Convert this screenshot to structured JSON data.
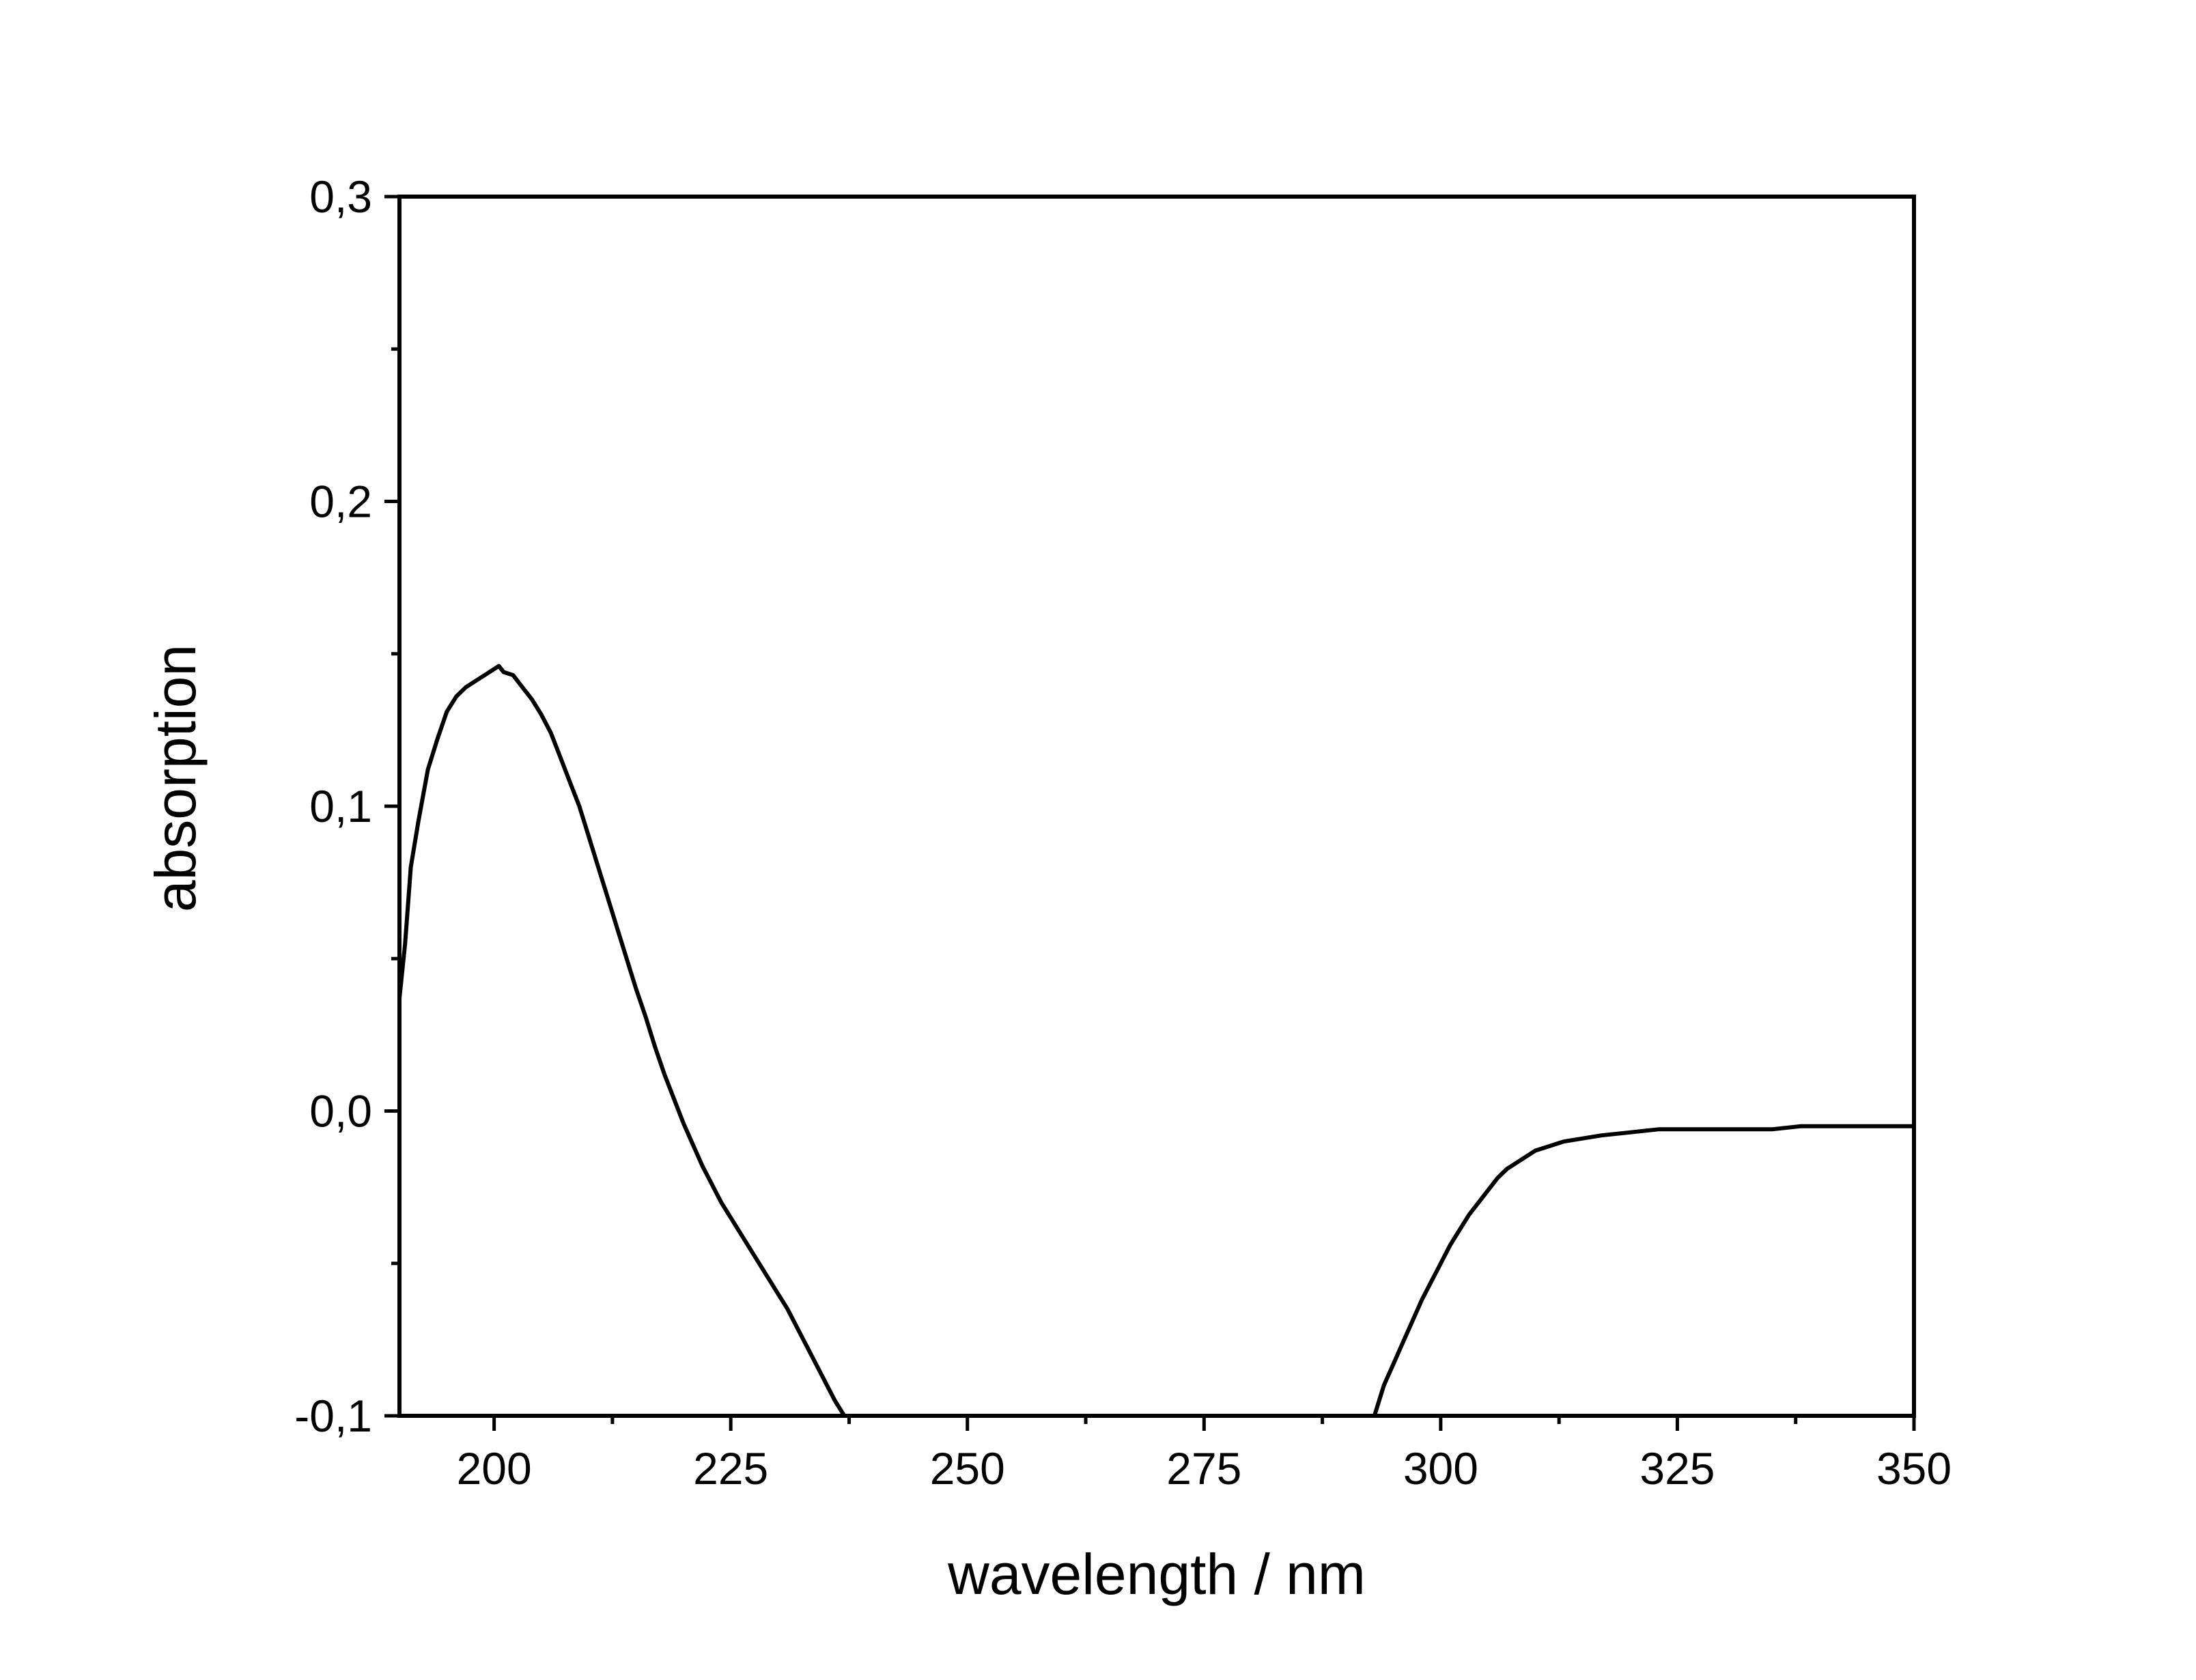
{
  "chart_data": {
    "type": "line",
    "title": "",
    "xlabel": "wavelength / nm",
    "ylabel": "absorption",
    "xlim": [
      190,
      350
    ],
    "ylim": [
      -0.1,
      0.3
    ],
    "x_ticks": [
      200,
      225,
      250,
      275,
      300,
      325,
      350
    ],
    "x_tick_labels": [
      "200",
      "225",
      "250",
      "275",
      "300",
      "325",
      "350"
    ],
    "x_minor_ticks": [
      212.5,
      237.5,
      262.5,
      287.5,
      312.5,
      337.5
    ],
    "y_ticks": [
      -0.1,
      0.0,
      0.1,
      0.2,
      0.3
    ],
    "y_tick_labels": [
      "-0,1",
      "0,0",
      "0,1",
      "0,2",
      "0,3"
    ],
    "y_minor_ticks": [
      -0.05,
      0.05,
      0.15,
      0.25
    ],
    "grid": false,
    "legend": "none",
    "line_color": "#000000",
    "series": [
      {
        "segments": [
          [
            [
              190.0,
              0.037
            ],
            [
              190.6,
              0.055
            ],
            [
              191.2,
              0.08
            ],
            [
              192.0,
              0.095
            ],
            [
              193.0,
              0.112
            ],
            [
              194.0,
              0.122
            ],
            [
              195.0,
              0.131
            ],
            [
              196.0,
              0.136
            ],
            [
              197.0,
              0.139
            ],
            [
              198.0,
              0.141
            ],
            [
              199.0,
              0.143
            ],
            [
              200.0,
              0.145
            ],
            [
              200.5,
              0.146
            ],
            [
              201.0,
              0.144
            ],
            [
              202.0,
              0.143
            ],
            [
              203.0,
              0.139
            ],
            [
              204.0,
              0.135
            ],
            [
              205.0,
              0.13
            ],
            [
              206.0,
              0.124
            ],
            [
              207.0,
              0.116
            ],
            [
              208.0,
              0.108
            ],
            [
              209.0,
              0.1
            ],
            [
              210.0,
              0.09
            ],
            [
              211.0,
              0.08
            ],
            [
              212.0,
              0.07
            ],
            [
              213.0,
              0.06
            ],
            [
              214.0,
              0.05
            ],
            [
              215.0,
              0.04
            ],
            [
              216.0,
              0.031
            ],
            [
              217.0,
              0.021
            ],
            [
              218.0,
              0.012
            ],
            [
              219.0,
              0.004
            ],
            [
              220.0,
              -0.004
            ],
            [
              221.0,
              -0.011
            ],
            [
              222.0,
              -0.018
            ],
            [
              223.0,
              -0.024
            ],
            [
              224.0,
              -0.03
            ],
            [
              225.0,
              -0.035
            ],
            [
              226.0,
              -0.04
            ],
            [
              227.0,
              -0.045
            ],
            [
              228.0,
              -0.05
            ],
            [
              229.0,
              -0.055
            ],
            [
              230.0,
              -0.06
            ],
            [
              231.0,
              -0.065
            ],
            [
              232.0,
              -0.071
            ],
            [
              233.0,
              -0.077
            ],
            [
              234.0,
              -0.083
            ],
            [
              235.0,
              -0.089
            ],
            [
              236.0,
              -0.095
            ],
            [
              237.0,
              -0.1
            ]
          ],
          [
            [
              293.0,
              -0.1
            ],
            [
              294.0,
              -0.09
            ],
            [
              295.0,
              -0.083
            ],
            [
              296.0,
              -0.076
            ],
            [
              297.0,
              -0.069
            ],
            [
              298.0,
              -0.062
            ],
            [
              299.0,
              -0.056
            ],
            [
              300.0,
              -0.05
            ],
            [
              301.0,
              -0.044
            ],
            [
              302.0,
              -0.039
            ],
            [
              303.0,
              -0.034
            ],
            [
              304.0,
              -0.03
            ],
            [
              305.0,
              -0.026
            ],
            [
              306.0,
              -0.022
            ],
            [
              307.0,
              -0.019
            ],
            [
              308.0,
              -0.017
            ],
            [
              309.0,
              -0.015
            ],
            [
              310.0,
              -0.013
            ],
            [
              311.0,
              -0.012
            ],
            [
              312.0,
              -0.011
            ],
            [
              313.0,
              -0.01
            ],
            [
              315.0,
              -0.009
            ],
            [
              317.0,
              -0.008
            ],
            [
              320.0,
              -0.007
            ],
            [
              323.0,
              -0.006
            ],
            [
              326.0,
              -0.006
            ],
            [
              329.0,
              -0.006
            ],
            [
              332.0,
              -0.006
            ],
            [
              335.0,
              -0.006
            ],
            [
              338.0,
              -0.005
            ],
            [
              341.0,
              -0.005
            ],
            [
              344.0,
              -0.005
            ],
            [
              347.0,
              -0.005
            ],
            [
              350.0,
              -0.005
            ]
          ]
        ]
      }
    ]
  }
}
